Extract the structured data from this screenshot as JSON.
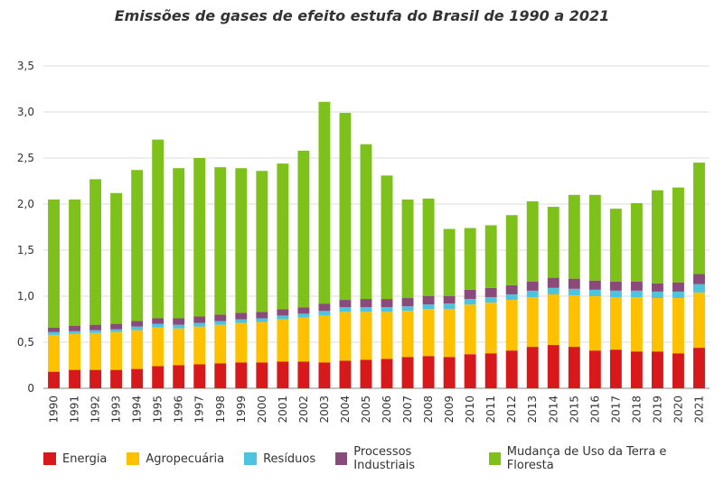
{
  "chart_data": {
    "type": "bar",
    "stacked": true,
    "title": "Emissões de gases de efeito estufa do Brasil de 1990 a 2021",
    "xlabel": "",
    "ylabel": "",
    "ylim": [
      0,
      3.5
    ],
    "yticks": [
      "0",
      "0,5",
      "1,0",
      "1,5",
      "2,0",
      "2,5",
      "3,0",
      "3,5"
    ],
    "grid": true,
    "legend_position": "bottom",
    "categories": [
      "1990",
      "1991",
      "1992",
      "1993",
      "1994",
      "1995",
      "1996",
      "1997",
      "1998",
      "1999",
      "2000",
      "2001",
      "2002",
      "2003",
      "2004",
      "2005",
      "2006",
      "2007",
      "2008",
      "2009",
      "2010",
      "2011",
      "2012",
      "2013",
      "2014",
      "2015",
      "2016",
      "2017",
      "2018",
      "2019",
      "2020",
      "2021"
    ],
    "series": [
      {
        "name": "Energia",
        "color": "#d7191c",
        "values": [
          0.18,
          0.2,
          0.2,
          0.2,
          0.21,
          0.24,
          0.25,
          0.26,
          0.27,
          0.28,
          0.28,
          0.29,
          0.29,
          0.28,
          0.3,
          0.31,
          0.32,
          0.34,
          0.35,
          0.34,
          0.37,
          0.38,
          0.41,
          0.45,
          0.47,
          0.45,
          0.41,
          0.42,
          0.4,
          0.4,
          0.38,
          0.44
        ]
      },
      {
        "name": "Agropecuária",
        "color": "#ffc000",
        "values": [
          0.4,
          0.39,
          0.4,
          0.41,
          0.42,
          0.42,
          0.4,
          0.41,
          0.42,
          0.43,
          0.44,
          0.46,
          0.48,
          0.51,
          0.53,
          0.52,
          0.51,
          0.5,
          0.51,
          0.52,
          0.54,
          0.55,
          0.55,
          0.54,
          0.55,
          0.56,
          0.59,
          0.57,
          0.59,
          0.58,
          0.6,
          0.6
        ]
      },
      {
        "name": "Resíduos",
        "color": "#4dc3e0",
        "values": [
          0.03,
          0.03,
          0.03,
          0.03,
          0.04,
          0.04,
          0.04,
          0.04,
          0.04,
          0.04,
          0.04,
          0.04,
          0.04,
          0.05,
          0.05,
          0.05,
          0.05,
          0.05,
          0.05,
          0.06,
          0.06,
          0.06,
          0.06,
          0.07,
          0.07,
          0.07,
          0.07,
          0.07,
          0.07,
          0.07,
          0.07,
          0.09
        ]
      },
      {
        "name": "Processos Industriais",
        "color": "#8a4a7a",
        "values": [
          0.05,
          0.06,
          0.06,
          0.06,
          0.06,
          0.06,
          0.07,
          0.07,
          0.07,
          0.07,
          0.07,
          0.07,
          0.07,
          0.08,
          0.08,
          0.09,
          0.09,
          0.09,
          0.09,
          0.08,
          0.1,
          0.1,
          0.1,
          0.1,
          0.11,
          0.11,
          0.1,
          0.1,
          0.1,
          0.09,
          0.1,
          0.11
        ]
      },
      {
        "name": "Mudança de Uso da Terra e Floresta",
        "color": "#7ec11a",
        "values": [
          1.39,
          1.37,
          1.58,
          1.42,
          1.64,
          1.94,
          1.63,
          1.72,
          1.6,
          1.57,
          1.53,
          1.58,
          1.7,
          2.19,
          2.03,
          1.68,
          1.34,
          1.07,
          1.06,
          0.73,
          0.67,
          0.68,
          0.76,
          0.87,
          0.77,
          0.91,
          0.93,
          0.79,
          0.85,
          1.01,
          1.03,
          1.21
        ]
      }
    ]
  }
}
